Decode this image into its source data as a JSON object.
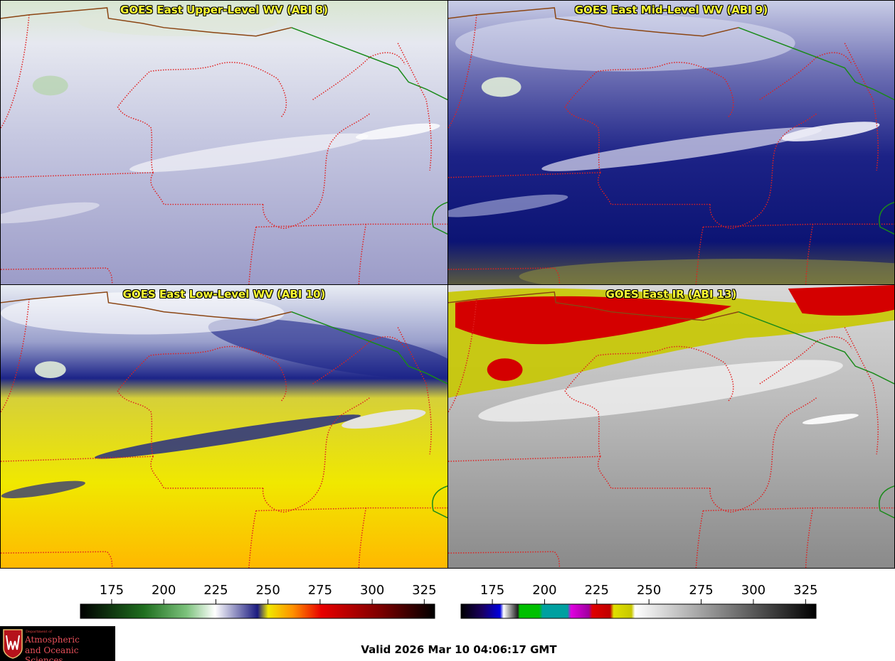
{
  "panels": [
    {
      "title": "GOES East Upper-Level WV (ABI 8)"
    },
    {
      "title": "GOES East Mid-Level WV (ABI 9)"
    },
    {
      "title": "GOES East Low-Level WV (ABI 10)"
    },
    {
      "title": "GOES East IR (ABI 13)"
    }
  ],
  "colorbars": [
    {
      "ticks": [
        "175",
        "200",
        "225",
        "250",
        "275",
        "300",
        "325"
      ],
      "range": [
        160,
        330
      ]
    },
    {
      "ticks": [
        "175",
        "200",
        "225",
        "250",
        "275",
        "300",
        "325"
      ],
      "range": [
        160,
        330
      ]
    }
  ],
  "logo": {
    "department": "Department of",
    "line1": "Atmospheric",
    "line2": "and Oceanic Sciences"
  },
  "valid_time": "Valid 2026 Mar 10 04:06:17 GMT",
  "colors": {
    "title_text": "#ffff33",
    "state_border": "#e02020",
    "national_border": "#1a8a1a",
    "coastline": "#8b4513"
  }
}
